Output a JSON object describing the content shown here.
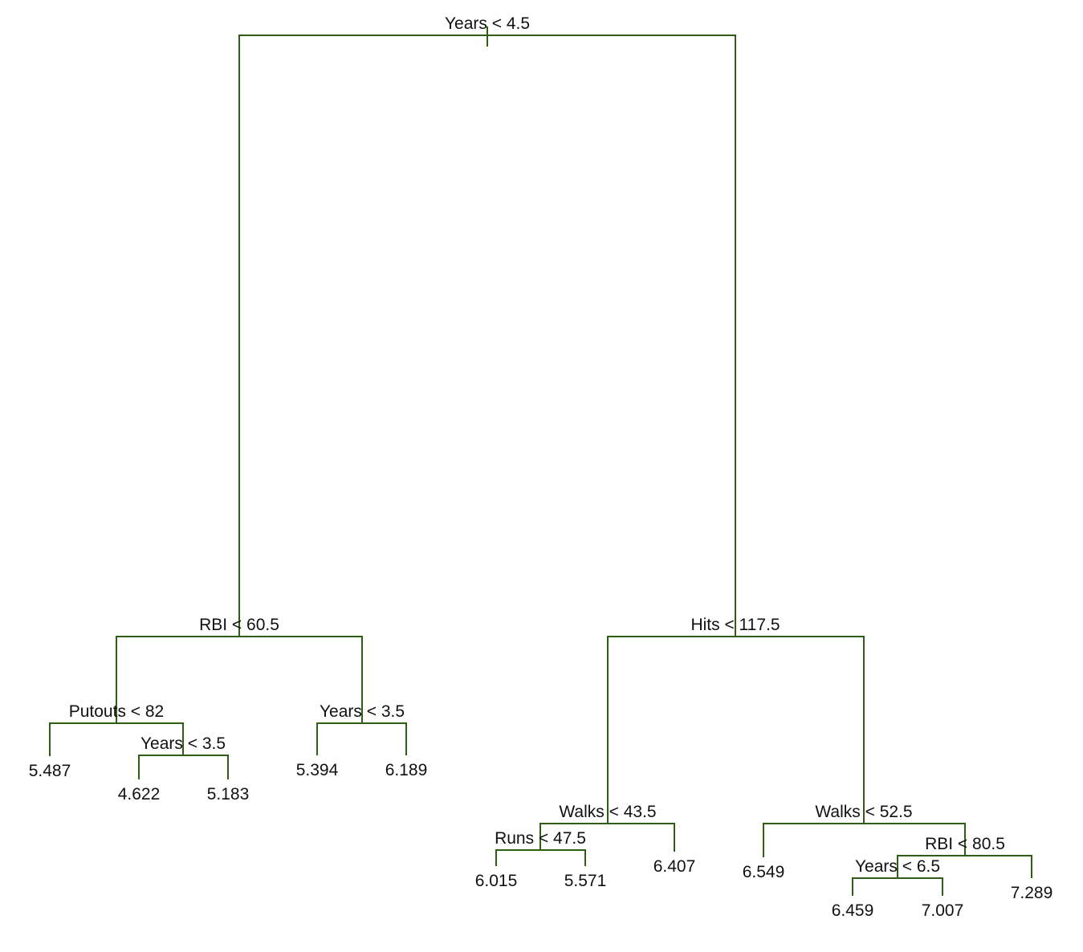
{
  "tree": {
    "root": {
      "label": "Years < 4.5",
      "left": {
        "label": "RBI < 60.5",
        "left": {
          "label": "Putouts < 82",
          "left": {
            "label": "5.487"
          },
          "right": {
            "label": "Years < 3.5",
            "left": {
              "label": "4.622"
            },
            "right": {
              "label": "5.183"
            }
          }
        },
        "right": {
          "label": "Years < 3.5",
          "left": {
            "label": "5.394"
          },
          "right": {
            "label": "6.189"
          }
        }
      },
      "right": {
        "label": "Hits < 117.5",
        "left": {
          "label": "Walks < 43.5",
          "left": {
            "label": "Runs < 47.5",
            "left": {
              "label": "6.015"
            },
            "right": {
              "label": "5.571"
            }
          },
          "right": {
            "label": "6.407"
          }
        },
        "right": {
          "label": "Walks < 52.5",
          "left": {
            "label": "6.549"
          },
          "right": {
            "label": "RBI < 80.5",
            "left": {
              "label": "Years < 6.5",
              "left": {
                "label": "6.459"
              },
              "right": {
                "label": "7.007"
              }
            },
            "right": {
              "label": "7.289"
            }
          }
        }
      }
    }
  }
}
